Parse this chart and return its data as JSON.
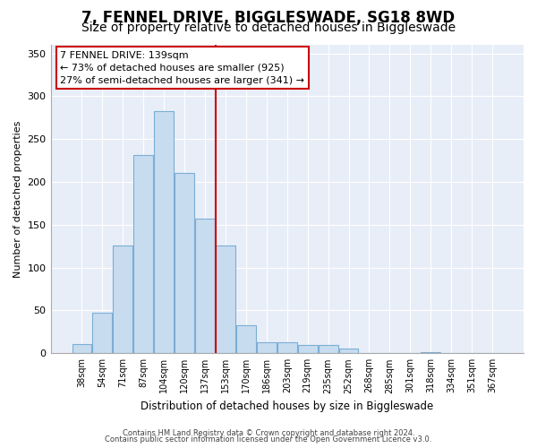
{
  "title": "7, FENNEL DRIVE, BIGGLESWADE, SG18 8WD",
  "subtitle": "Size of property relative to detached houses in Biggleswade",
  "xlabel": "Distribution of detached houses by size in Biggleswade",
  "ylabel": "Number of detached properties",
  "bar_labels": [
    "38sqm",
    "54sqm",
    "71sqm",
    "87sqm",
    "104sqm",
    "120sqm",
    "137sqm",
    "153sqm",
    "170sqm",
    "186sqm",
    "203sqm",
    "219sqm",
    "235sqm",
    "252sqm",
    "268sqm",
    "285sqm",
    "301sqm",
    "318sqm",
    "334sqm",
    "351sqm",
    "367sqm"
  ],
  "bar_values": [
    11,
    47,
    126,
    231,
    283,
    211,
    157,
    126,
    33,
    13,
    13,
    10,
    10,
    6,
    0,
    0,
    0,
    1,
    0,
    0,
    0
  ],
  "bar_color": "#c8dcf0",
  "bar_edge_color": "#7aaed4",
  "vline_x": 6.5,
  "vline_color": "#cc0000",
  "annotation_title": "7 FENNEL DRIVE: 139sqm",
  "annotation_line1": "← 73% of detached houses are smaller (925)",
  "annotation_line2": "27% of semi-detached houses are larger (341) →",
  "annotation_box_color": "#ffffff",
  "annotation_box_edge": "#cc0000",
  "ylim": [
    0,
    360
  ],
  "yticks": [
    0,
    50,
    100,
    150,
    200,
    250,
    300,
    350
  ],
  "footer1": "Contains HM Land Registry data © Crown copyright and database right 2024.",
  "footer2": "Contains public sector information licensed under the Open Government Licence v3.0.",
  "bg_color": "#ffffff",
  "plot_bg_color": "#e8eef8",
  "grid_color": "#ffffff",
  "title_fontsize": 12,
  "subtitle_fontsize": 10
}
